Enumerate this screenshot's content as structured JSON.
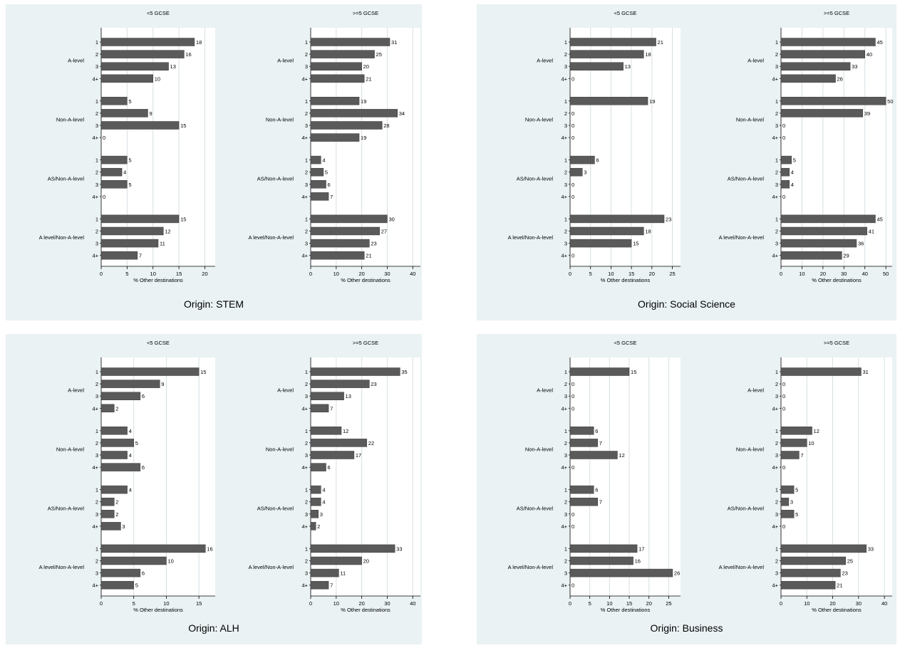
{
  "chart_data": [
    {
      "type": "bar",
      "orientation": "horizontal",
      "origin_title": "Origin: STEM",
      "xlabel": "% Other destinations",
      "groups": [
        "A-level",
        "Non-A-level",
        "AS/Non-A-level",
        "A level/Non-A-level"
      ],
      "categories": [
        "1",
        "2",
        "3",
        "4+"
      ],
      "panels": [
        {
          "title": "<5 GCSE",
          "xlim": [
            0,
            22
          ],
          "xticks": [
            0,
            5,
            10,
            15,
            20
          ],
          "values": [
            [
              18,
              16,
              13,
              10
            ],
            [
              5,
              9,
              15,
              0
            ],
            [
              5,
              4,
              5,
              0
            ],
            [
              15,
              12,
              11,
              7
            ]
          ]
        },
        {
          "title": ">=5 GCSE",
          "xlim": [
            0,
            43
          ],
          "xticks": [
            0,
            10,
            20,
            30,
            40
          ],
          "values": [
            [
              31,
              25,
              20,
              21
            ],
            [
              19,
              34,
              28,
              19
            ],
            [
              4,
              5,
              6,
              7
            ],
            [
              30,
              27,
              23,
              21
            ]
          ]
        }
      ]
    },
    {
      "type": "bar",
      "orientation": "horizontal",
      "origin_title": "Origin: Social Science",
      "xlabel": "% Other destinations",
      "groups": [
        "A-level",
        "Non-A-level",
        "AS/Non-A-level",
        "A level/Non-A-level"
      ],
      "categories": [
        "1",
        "2",
        "3",
        "4+"
      ],
      "panels": [
        {
          "title": "<5 GCSE",
          "xlim": [
            0,
            27
          ],
          "xticks": [
            0,
            5,
            10,
            15,
            20,
            25
          ],
          "values": [
            [
              21,
              18,
              13,
              0
            ],
            [
              19,
              0,
              0,
              0
            ],
            [
              6,
              3,
              0,
              0
            ],
            [
              23,
              18,
              15,
              0
            ]
          ]
        },
        {
          "title": ">=5 GCSE",
          "xlim": [
            0,
            53
          ],
          "xticks": [
            0,
            10,
            20,
            30,
            40,
            50
          ],
          "values": [
            [
              45,
              40,
              33,
              26
            ],
            [
              50,
              39,
              0,
              0
            ],
            [
              5,
              4,
              4,
              0
            ],
            [
              45,
              41,
              36,
              29
            ]
          ]
        }
      ]
    },
    {
      "type": "bar",
      "orientation": "horizontal",
      "origin_title": "Origin: ALH",
      "xlabel": "% Other destinations",
      "groups": [
        "A-level",
        "Non-A-level",
        "AS/Non-A-level",
        "A level/Non-A-level"
      ],
      "categories": [
        "1",
        "2",
        "3",
        "4+"
      ],
      "panels": [
        {
          "title": "<5 GCSE",
          "xlim": [
            0,
            17.5
          ],
          "xticks": [
            0,
            5,
            10,
            15
          ],
          "values": [
            [
              15,
              9,
              6,
              2
            ],
            [
              4,
              5,
              4,
              6
            ],
            [
              4,
              2,
              2,
              3
            ],
            [
              16,
              10,
              6,
              5
            ]
          ]
        },
        {
          "title": ">=5 GCSE",
          "xlim": [
            0,
            43
          ],
          "xticks": [
            0,
            10,
            20,
            30,
            40
          ],
          "values": [
            [
              35,
              23,
              13,
              7
            ],
            [
              12,
              22,
              17,
              6
            ],
            [
              4,
              4,
              3,
              2
            ],
            [
              33,
              20,
              11,
              7
            ]
          ]
        }
      ]
    },
    {
      "type": "bar",
      "orientation": "horizontal",
      "origin_title": "Origin: Business",
      "xlabel": "% Other destinations",
      "groups": [
        "A-level",
        "Non-A-level",
        "AS/Non-A-level",
        "A level/Non-A-level"
      ],
      "categories": [
        "1",
        "2",
        "3",
        "4+"
      ],
      "panels": [
        {
          "title": "<5 GCSE",
          "xlim": [
            0,
            28
          ],
          "xticks": [
            0,
            5,
            10,
            15,
            20,
            25
          ],
          "values": [
            [
              15,
              0,
              0,
              0
            ],
            [
              6,
              7,
              12,
              0
            ],
            [
              6,
              7,
              0,
              0
            ],
            [
              17,
              16,
              26,
              0
            ]
          ]
        },
        {
          "title": ">=5 GCSE",
          "xlim": [
            0,
            43
          ],
          "xticks": [
            0,
            10,
            20,
            30,
            40
          ],
          "values": [
            [
              31,
              0,
              0,
              0
            ],
            [
              12,
              10,
              7,
              0
            ],
            [
              5,
              3,
              5,
              0
            ],
            [
              33,
              25,
              23,
              21
            ]
          ]
        }
      ]
    }
  ],
  "style": {
    "outer_background": "#eaf2f3",
    "plot_background": "#ffffff",
    "bar_color": "#5a5a5a",
    "grid_color": "#d6dfe2",
    "text_color": "#000000"
  }
}
